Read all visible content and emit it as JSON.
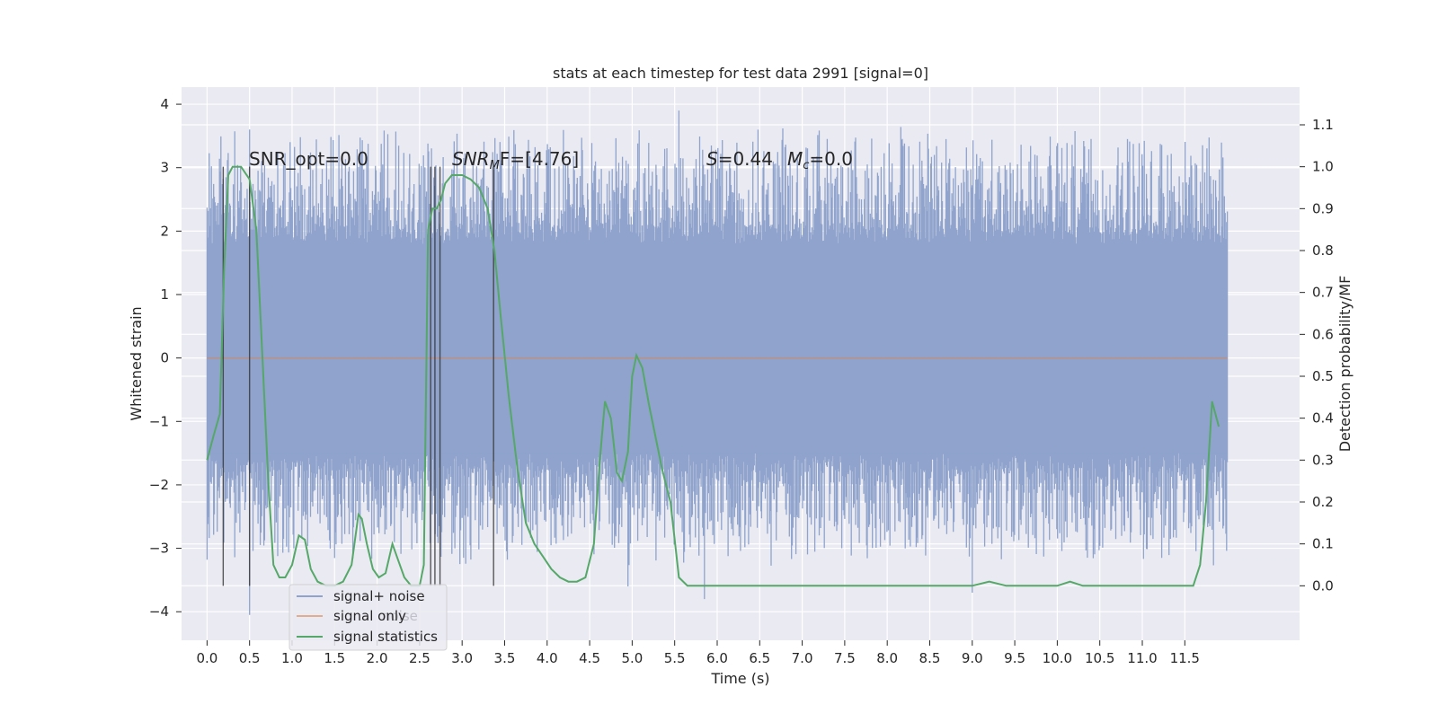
{
  "chart_data": {
    "type": "line",
    "title": "stats at each timestep for test data 2991 [signal=0]",
    "xlabel": "Time (s)",
    "ylabel": "Whitened strain",
    "ylabel_right": "Detection probability/MF",
    "xlim": [
      -0.3,
      12.85
    ],
    "ylim": [
      -4.45,
      4.27
    ],
    "ylim_right": [
      -0.13,
      1.19
    ],
    "x_ticks": [
      "0.0",
      "0.5",
      "1.0",
      "1.5",
      "2.0",
      "2.5",
      "3.0",
      "3.5",
      "4.0",
      "4.5",
      "5.0",
      "5.5",
      "6.0",
      "6.5",
      "7.0",
      "7.5",
      "8.0",
      "8.5",
      "9.0",
      "9.5",
      "10.0",
      "10.5",
      "11.0",
      "11.5"
    ],
    "y_ticks": [
      "4",
      "3",
      "2",
      "1",
      "0",
      "−1",
      "−2",
      "−3",
      "−4"
    ],
    "y_ticks_right": [
      "1.1",
      "1.0",
      "0.9",
      "0.8",
      "0.7",
      "0.6",
      "0.5",
      "0.4",
      "0.3",
      "0.2",
      "0.1",
      "0.0"
    ],
    "grid": true,
    "legend_position": "lower-left",
    "legend_ghost_text": "noise",
    "annotations": {
      "snr_opt": "SNR_opt=0.0",
      "snr_mf_base": "SNR",
      "snr_mf_sub": "M",
      "snr_mf_rest": "F=[4.76]",
      "s_label": "S",
      "s_value": "=0.44",
      "mc_label": "M",
      "mc_sub": "c",
      "mc_value": "=0.0"
    },
    "series": [
      {
        "name": "signal+ noise",
        "color": "#8fa3cc",
        "description_range": [
          0.0,
          12.0
        ],
        "envelope_typical": [
          -1.5,
          1.8
        ],
        "peaks": [
          [
            0.5,
            3.6
          ],
          [
            5.55,
            3.9
          ],
          [
            0.5,
            -4.05
          ],
          [
            5.85,
            -3.8
          ],
          [
            9.0,
            -3.7
          ],
          [
            4.95,
            -3.6
          ],
          [
            12.0,
            2.2
          ]
        ]
      },
      {
        "name": "signal only",
        "color": "#dd8452",
        "x": [
          0.0,
          12.0
        ],
        "y": [
          0.0,
          0.0
        ]
      },
      {
        "name": "signal statistics",
        "color": "#55a868",
        "axis": "right",
        "x": [
          0.0,
          0.08,
          0.15,
          0.2,
          0.25,
          0.3,
          0.4,
          0.5,
          0.58,
          0.65,
          0.72,
          0.78,
          0.85,
          0.92,
          1.0,
          1.08,
          1.15,
          1.22,
          1.3,
          1.4,
          1.5,
          1.6,
          1.7,
          1.78,
          1.82,
          1.88,
          1.95,
          2.02,
          2.1,
          2.18,
          2.25,
          2.32,
          2.4,
          2.5,
          2.55,
          2.6,
          2.65,
          2.7,
          2.75,
          2.8,
          2.88,
          2.95,
          3.0,
          3.1,
          3.2,
          3.3,
          3.38,
          3.45,
          3.55,
          3.65,
          3.75,
          3.85,
          3.95,
          4.05,
          4.15,
          4.25,
          4.35,
          4.45,
          4.55,
          4.62,
          4.68,
          4.75,
          4.82,
          4.88,
          4.95,
          5.0,
          5.05,
          5.12,
          5.2,
          5.28,
          5.35,
          5.45,
          5.55,
          5.65,
          6.0,
          6.5,
          7.0,
          7.5,
          8.0,
          8.5,
          9.0,
          9.2,
          9.4,
          10.0,
          10.15,
          10.3,
          10.5,
          11.0,
          11.6,
          11.68,
          11.75,
          11.82,
          11.9
        ],
        "y": [
          0.3,
          0.36,
          0.41,
          0.75,
          0.98,
          1.0,
          1.0,
          0.97,
          0.85,
          0.55,
          0.25,
          0.05,
          0.02,
          0.02,
          0.05,
          0.12,
          0.11,
          0.04,
          0.01,
          0.0,
          0.0,
          0.01,
          0.05,
          0.17,
          0.16,
          0.1,
          0.04,
          0.02,
          0.03,
          0.1,
          0.06,
          0.02,
          0.0,
          0.0,
          0.05,
          0.85,
          0.9,
          0.9,
          0.92,
          0.96,
          0.98,
          0.98,
          0.98,
          0.97,
          0.95,
          0.9,
          0.8,
          0.65,
          0.45,
          0.28,
          0.15,
          0.1,
          0.07,
          0.04,
          0.02,
          0.01,
          0.01,
          0.02,
          0.1,
          0.3,
          0.44,
          0.4,
          0.27,
          0.25,
          0.32,
          0.5,
          0.55,
          0.52,
          0.43,
          0.35,
          0.28,
          0.2,
          0.02,
          0.0,
          0.0,
          0.0,
          0.0,
          0.0,
          0.0,
          0.0,
          0.0,
          0.01,
          0.0,
          0.0,
          0.01,
          0.0,
          0.0,
          0.0,
          0.0,
          0.05,
          0.2,
          0.44,
          0.38
        ]
      }
    ],
    "detection_markers_x": [
      0.19,
      0.5,
      2.63,
      2.68,
      2.74,
      3.37
    ]
  }
}
